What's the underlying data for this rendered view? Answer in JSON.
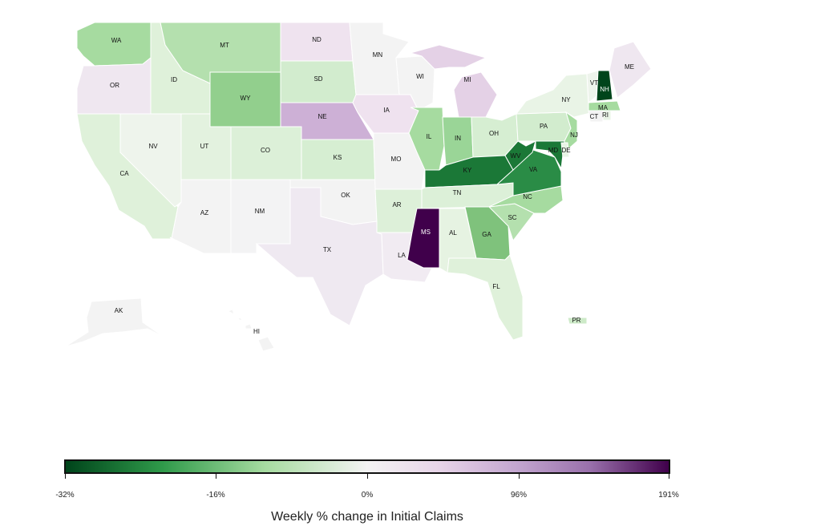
{
  "map": {
    "states": [
      {
        "code": "WA",
        "label": "WA",
        "color": "#a6dba0"
      },
      {
        "code": "OR",
        "label": "OR",
        "color": "#efe7f0"
      },
      {
        "code": "CA",
        "label": "CA",
        "color": "#dff1da"
      },
      {
        "code": "NV",
        "label": "NV",
        "color": "#eef4ec"
      },
      {
        "code": "ID",
        "label": "ID",
        "color": "#dff1da"
      },
      {
        "code": "MT",
        "label": "MT",
        "color": "#b4e0ae"
      },
      {
        "code": "WY",
        "label": "WY",
        "color": "#92cf8d"
      },
      {
        "code": "UT",
        "label": "UT",
        "color": "#e3f2df"
      },
      {
        "code": "AZ",
        "label": "AZ",
        "color": "#f3f3f3"
      },
      {
        "code": "CO",
        "label": "CO",
        "color": "#dcf0d8"
      },
      {
        "code": "NM",
        "label": "NM",
        "color": "#f3f3f4"
      },
      {
        "code": "ND",
        "label": "ND",
        "color": "#efe3ef"
      },
      {
        "code": "SD",
        "label": "SD",
        "color": "#d2ecce"
      },
      {
        "code": "NE",
        "label": "NE",
        "color": "#cdb0d6"
      },
      {
        "code": "KS",
        "label": "KS",
        "color": "#d6eed2"
      },
      {
        "code": "OK",
        "label": "OK",
        "color": "#f3f3f3"
      },
      {
        "code": "TX",
        "label": "TX",
        "color": "#efe9f1"
      },
      {
        "code": "MN",
        "label": "MN",
        "color": "#f3f3f3"
      },
      {
        "code": "IA",
        "label": "IA",
        "color": "#efe2ef"
      },
      {
        "code": "MO",
        "label": "MO",
        "color": "#f3f3f3"
      },
      {
        "code": "AR",
        "label": "AR",
        "color": "#ddf0d9"
      },
      {
        "code": "LA",
        "label": "LA",
        "color": "#f1ebf2"
      },
      {
        "code": "WI",
        "label": "WI",
        "color": "#f3f3f3"
      },
      {
        "code": "IL",
        "label": "IL",
        "color": "#a6dba0"
      },
      {
        "code": "MI",
        "label": "MI",
        "color": "#e4d1e6"
      },
      {
        "code": "IN",
        "label": "IN",
        "color": "#9ad597"
      },
      {
        "code": "OH",
        "label": "OH",
        "color": "#d6eed2"
      },
      {
        "code": "KY",
        "label": "KY",
        "color": "#1b7837"
      },
      {
        "code": "TN",
        "label": "TN",
        "color": "#dcf0d8"
      },
      {
        "code": "MS",
        "label": "MS",
        "color": "#40004b"
      },
      {
        "code": "AL",
        "label": "AL",
        "color": "#e6f3e2"
      },
      {
        "code": "GA",
        "label": "GA",
        "color": "#7fc27c"
      },
      {
        "code": "FL",
        "label": "FL",
        "color": "#dff1da"
      },
      {
        "code": "SC",
        "label": "SC",
        "color": "#b4e0ae"
      },
      {
        "code": "NC",
        "label": "NC",
        "color": "#a6dba0"
      },
      {
        "code": "VA",
        "label": "VA",
        "color": "#2a8c46"
      },
      {
        "code": "WV",
        "label": "WV",
        "color": "#1b7837"
      },
      {
        "code": "PA",
        "label": "PA",
        "color": "#d2ecce"
      },
      {
        "code": "NY",
        "label": "NY",
        "color": "#e9f4e6"
      },
      {
        "code": "NJ",
        "label": "NJ",
        "color": "#a6dba0"
      },
      {
        "code": "DE",
        "label": "DE",
        "color": "#e9f4e6"
      },
      {
        "code": "MD",
        "label": "MD",
        "color": "#1b7837"
      },
      {
        "code": "VT",
        "label": "VT",
        "color": "#eef4ec"
      },
      {
        "code": "NH",
        "label": "NH",
        "color": "#00441b"
      },
      {
        "code": "MA",
        "label": "MA",
        "color": "#a6dba0"
      },
      {
        "code": "CT",
        "label": "CT",
        "color": "#f3f3f3"
      },
      {
        "code": "RI",
        "label": "RI",
        "color": "#e9f4e6"
      },
      {
        "code": "ME",
        "label": "ME",
        "color": "#efe7f0"
      },
      {
        "code": "AK",
        "label": "AK",
        "color": "#f3f3f3"
      },
      {
        "code": "HI",
        "label": "HI",
        "color": "#f3f3f3"
      },
      {
        "code": "PR",
        "label": "PR",
        "color": "#cdeac8"
      }
    ]
  },
  "legend": {
    "title": "Weekly % change in Initial Claims",
    "ticks": [
      "-32%",
      "-16%",
      "0%",
      "96%",
      "191%"
    ],
    "scale_colors": [
      "#00441b",
      "#a6dba0",
      "#f3f3f3",
      "#c2a5cf",
      "#40004b"
    ]
  }
}
